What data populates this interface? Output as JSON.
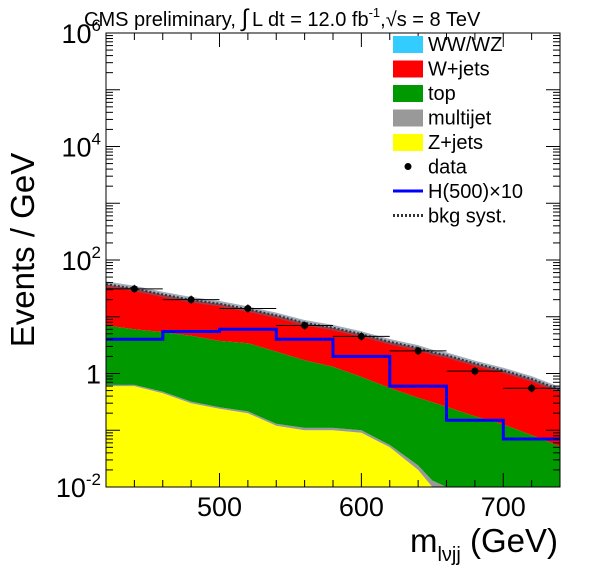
{
  "chart_data": {
    "type": "area",
    "header": {
      "prefix": "CMS preliminary, ",
      "integral": "∫",
      "lumi": "L dt = 12.0 fb",
      "lumi_exp": "-1",
      "sep": ",",
      "sqrt": "√",
      "energy": "s = 8 TeV"
    },
    "ylabel": "Events / GeV",
    "xlabel": {
      "main": "m",
      "sub": "lνjj",
      "unit": " (GeV)"
    },
    "y_scale": "log",
    "xlim": [
      420,
      740
    ],
    "ylim": [
      0.01,
      1000000
    ],
    "x_ticks": [
      500,
      600,
      700
    ],
    "y_ticks": [
      {
        "value": 0.01,
        "base": "10",
        "exp": "-2"
      },
      {
        "value": 1,
        "base": "1",
        "exp": ""
      },
      {
        "value": 100,
        "base": "10",
        "exp": "2"
      },
      {
        "value": 10000,
        "base": "10",
        "exp": "4"
      },
      {
        "value": 1000000,
        "base": "10",
        "exp": "6"
      }
    ],
    "x": [
      420,
      440,
      460,
      480,
      500,
      520,
      540,
      560,
      580,
      600,
      620,
      640,
      650,
      660,
      680,
      700,
      720,
      740
    ],
    "stack": [
      {
        "name": "Z+jets",
        "color": "#ffff00",
        "values": [
          0.6,
          0.6,
          0.45,
          0.3,
          0.24,
          0.2,
          0.12,
          0.1,
          0.1,
          0.09,
          0.05,
          0.02,
          0.01,
          0.008,
          0.006,
          0.006,
          0.006,
          0.006
        ]
      },
      {
        "name": "multijet",
        "color": "#999999",
        "values": [
          0.03,
          0.03,
          0.025,
          0.02,
          0.015,
          0.015,
          0.01,
          0.01,
          0.01,
          0.01,
          0.005,
          0.004,
          0.003,
          0.002,
          0.001,
          0.001,
          0.001,
          0.001
        ]
      },
      {
        "name": "top",
        "color": "#009900",
        "values": [
          6.4,
          5.4,
          4.9,
          4.3,
          3.5,
          3.2,
          2.3,
          1.6,
          1.2,
          0.77,
          0.5,
          0.35,
          0.3,
          0.25,
          0.17,
          0.12,
          0.075,
          0.045
        ]
      },
      {
        "name": "W+jets",
        "color": "#ff0000",
        "values": [
          30,
          25,
          19,
          15,
          13,
          10,
          8,
          6,
          5,
          4,
          3,
          2.4,
          2,
          1.8,
          1.3,
          0.98,
          0.7,
          0.45
        ]
      },
      {
        "name": "WW/WZ",
        "color": "#33ccff",
        "values": [
          0.4,
          0.35,
          0.3,
          0.25,
          0.2,
          0.17,
          0.14,
          0.12,
          0.1,
          0.08,
          0.06,
          0.05,
          0.045,
          0.04,
          0.03,
          0.025,
          0.02,
          0.015
        ]
      }
    ],
    "data_points": {
      "name": "data",
      "x": [
        440,
        480,
        520,
        560,
        600,
        640,
        680,
        720
      ],
      "y": [
        31,
        20,
        14,
        7,
        4.5,
        2.5,
        1.1,
        0.55
      ],
      "xerr": 20
    },
    "signal": {
      "name": "H(500)×10",
      "color": "#0000ff",
      "edges": [
        420,
        460,
        500,
        540,
        580,
        620,
        660,
        700,
        740
      ],
      "values": [
        4.0,
        5.5,
        6.0,
        4.0,
        2.0,
        0.6,
        0.15,
        0.07
      ]
    },
    "syst": {
      "name": "bkg syst.",
      "color": "#333333"
    },
    "legend": {
      "placement": "top-right",
      "entries": [
        {
          "label": "WW/WZ",
          "kind": "box",
          "color": "#33ccff"
        },
        {
          "label": "W+jets",
          "kind": "box",
          "color": "#ff0000"
        },
        {
          "label": "top",
          "kind": "box",
          "color": "#009900"
        },
        {
          "label": "multijet",
          "kind": "box",
          "color": "#999999"
        },
        {
          "label": "Z+jets",
          "kind": "box",
          "color": "#ffff00"
        },
        {
          "label": "data",
          "kind": "marker",
          "color": "#000000"
        },
        {
          "label": "H(500)×10",
          "kind": "line",
          "color": "#0000ff"
        },
        {
          "label": "bkg syst.",
          "kind": "dotted",
          "color": "#333333"
        }
      ]
    }
  }
}
